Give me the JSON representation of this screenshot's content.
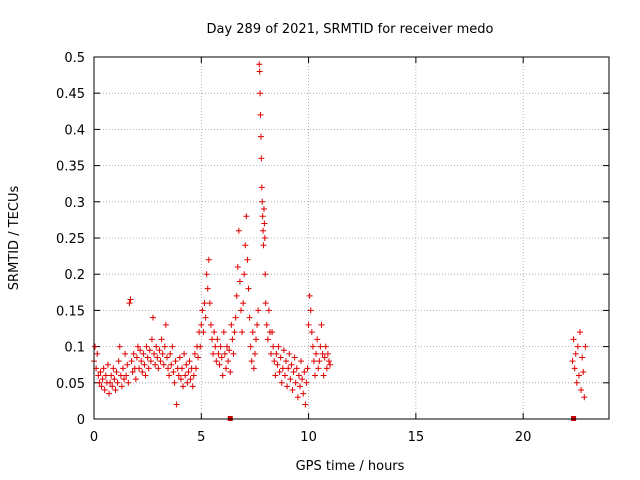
{
  "chart_data": {
    "type": "scatter",
    "title": "Day 289 of 2021, SRMTID for receiver medo",
    "xlabel": "GPS time / hours",
    "ylabel": "SRMTID / TECUs",
    "xlim": [
      0,
      24
    ],
    "ylim": [
      0,
      0.5
    ],
    "grid": true,
    "marker": "plus",
    "x_ticks": [
      0,
      5,
      10,
      15,
      20
    ],
    "x_tick_labels": [
      "0",
      "5",
      "10",
      "15",
      "20"
    ],
    "y_ticks": [
      0,
      0.05,
      0.1,
      0.15,
      0.2,
      0.25,
      0.3,
      0.35,
      0.4,
      0.45,
      0.5
    ],
    "y_tick_labels": [
      "0",
      "0.05",
      "0.1",
      "0.15",
      "0.2",
      "0.25",
      "0.3",
      "0.35",
      "0.4",
      "0.45",
      "0.5"
    ],
    "colors": {
      "series": "#e00000",
      "zero_marker": "#cc0000"
    },
    "series": [
      {
        "name": "SRMTID",
        "points": [
          [
            0.0,
            0.08
          ],
          [
            0.05,
            0.1
          ],
          [
            0.1,
            0.07
          ],
          [
            0.15,
            0.09
          ],
          [
            0.2,
            0.06
          ],
          [
            0.25,
            0.05
          ],
          [
            0.3,
            0.065
          ],
          [
            0.35,
            0.045
          ],
          [
            0.4,
            0.055
          ],
          [
            0.45,
            0.07
          ],
          [
            0.5,
            0.04
          ],
          [
            0.55,
            0.06
          ],
          [
            0.6,
            0.05
          ],
          [
            0.65,
            0.075
          ],
          [
            0.7,
            0.035
          ],
          [
            0.75,
            0.05
          ],
          [
            0.8,
            0.06
          ],
          [
            0.85,
            0.045
          ],
          [
            0.9,
            0.07
          ],
          [
            0.95,
            0.055
          ],
          [
            1.0,
            0.04
          ],
          [
            1.05,
            0.065
          ],
          [
            1.1,
            0.05
          ],
          [
            1.15,
            0.08
          ],
          [
            1.2,
            0.1
          ],
          [
            1.25,
            0.06
          ],
          [
            1.3,
            0.045
          ],
          [
            1.35,
            0.07
          ],
          [
            1.4,
            0.055
          ],
          [
            1.45,
            0.09
          ],
          [
            1.5,
            0.06
          ],
          [
            1.55,
            0.075
          ],
          [
            1.6,
            0.05
          ],
          [
            1.65,
            0.16
          ],
          [
            1.7,
            0.165
          ],
          [
            1.75,
            0.08
          ],
          [
            1.8,
            0.065
          ],
          [
            1.85,
            0.09
          ],
          [
            1.9,
            0.07
          ],
          [
            1.95,
            0.055
          ],
          [
            2.0,
            0.085
          ],
          [
            2.05,
            0.1
          ],
          [
            2.1,
            0.07
          ],
          [
            2.15,
            0.095
          ],
          [
            2.2,
            0.08
          ],
          [
            2.25,
            0.065
          ],
          [
            2.3,
            0.09
          ],
          [
            2.35,
            0.075
          ],
          [
            2.4,
            0.06
          ],
          [
            2.45,
            0.1
          ],
          [
            2.5,
            0.085
          ],
          [
            2.55,
            0.07
          ],
          [
            2.6,
            0.095
          ],
          [
            2.65,
            0.08
          ],
          [
            2.7,
            0.11
          ],
          [
            2.75,
            0.14
          ],
          [
            2.8,
            0.09
          ],
          [
            2.85,
            0.075
          ],
          [
            2.9,
            0.1
          ],
          [
            2.95,
            0.085
          ],
          [
            3.0,
            0.07
          ],
          [
            3.05,
            0.095
          ],
          [
            3.1,
            0.08
          ],
          [
            3.15,
            0.11
          ],
          [
            3.2,
            0.09
          ],
          [
            3.25,
            0.075
          ],
          [
            3.3,
            0.1
          ],
          [
            3.35,
            0.13
          ],
          [
            3.4,
            0.085
          ],
          [
            3.45,
            0.07
          ],
          [
            3.5,
            0.06
          ],
          [
            3.55,
            0.09
          ],
          [
            3.6,
            0.075
          ],
          [
            3.65,
            0.1
          ],
          [
            3.7,
            0.065
          ],
          [
            3.75,
            0.05
          ],
          [
            3.8,
            0.08
          ],
          [
            3.85,
            0.02
          ],
          [
            3.9,
            0.07
          ],
          [
            3.95,
            0.06
          ],
          [
            4.0,
            0.085
          ],
          [
            4.05,
            0.055
          ],
          [
            4.1,
            0.07
          ],
          [
            4.15,
            0.045
          ],
          [
            4.2,
            0.09
          ],
          [
            4.25,
            0.06
          ],
          [
            4.3,
            0.075
          ],
          [
            4.35,
            0.05
          ],
          [
            4.4,
            0.065
          ],
          [
            4.45,
            0.08
          ],
          [
            4.5,
            0.055
          ],
          [
            4.55,
            0.07
          ],
          [
            4.6,
            0.045
          ],
          [
            4.65,
            0.06
          ],
          [
            4.7,
            0.09
          ],
          [
            4.75,
            0.07
          ],
          [
            4.8,
            0.1
          ],
          [
            4.85,
            0.085
          ],
          [
            4.9,
            0.12
          ],
          [
            4.95,
            0.1
          ],
          [
            5.0,
            0.13
          ],
          [
            5.05,
            0.15
          ],
          [
            5.1,
            0.12
          ],
          [
            5.15,
            0.16
          ],
          [
            5.2,
            0.14
          ],
          [
            5.25,
            0.2
          ],
          [
            5.3,
            0.18
          ],
          [
            5.35,
            0.22
          ],
          [
            5.4,
            0.16
          ],
          [
            5.45,
            0.13
          ],
          [
            5.5,
            0.11
          ],
          [
            5.55,
            0.09
          ],
          [
            5.6,
            0.12
          ],
          [
            5.65,
            0.1
          ],
          [
            5.7,
            0.08
          ],
          [
            5.75,
            0.11
          ],
          [
            5.8,
            0.09
          ],
          [
            5.85,
            0.075
          ],
          [
            5.9,
            0.1
          ],
          [
            5.95,
            0.085
          ],
          [
            6.0,
            0.06
          ],
          [
            6.05,
            0.12
          ],
          [
            6.1,
            0.09
          ],
          [
            6.15,
            0.07
          ],
          [
            6.2,
            0.1
          ],
          [
            6.25,
            0.08
          ],
          [
            6.3,
            0.095
          ],
          [
            6.35,
            0.065
          ],
          [
            6.4,
            0.13
          ],
          [
            6.45,
            0.11
          ],
          [
            6.5,
            0.09
          ],
          [
            6.55,
            0.12
          ],
          [
            6.6,
            0.14
          ],
          [
            6.65,
            0.17
          ],
          [
            6.7,
            0.21
          ],
          [
            6.75,
            0.26
          ],
          [
            6.8,
            0.19
          ],
          [
            6.85,
            0.15
          ],
          [
            6.9,
            0.12
          ],
          [
            6.95,
            0.16
          ],
          [
            7.0,
            0.2
          ],
          [
            7.05,
            0.24
          ],
          [
            7.1,
            0.28
          ],
          [
            7.15,
            0.22
          ],
          [
            7.2,
            0.18
          ],
          [
            7.25,
            0.14
          ],
          [
            7.3,
            0.1
          ],
          [
            7.35,
            0.08
          ],
          [
            7.4,
            0.12
          ],
          [
            7.45,
            0.07
          ],
          [
            7.5,
            0.09
          ],
          [
            7.55,
            0.11
          ],
          [
            7.6,
            0.13
          ],
          [
            7.65,
            0.15
          ],
          [
            7.7,
            0.49
          ],
          [
            7.72,
            0.48
          ],
          [
            7.74,
            0.45
          ],
          [
            7.76,
            0.42
          ],
          [
            7.78,
            0.39
          ],
          [
            7.8,
            0.36
          ],
          [
            7.82,
            0.32
          ],
          [
            7.84,
            0.3
          ],
          [
            7.86,
            0.28
          ],
          [
            7.88,
            0.26
          ],
          [
            7.9,
            0.24
          ],
          [
            7.92,
            0.29
          ],
          [
            7.94,
            0.27
          ],
          [
            7.96,
            0.25
          ],
          [
            7.98,
            0.2
          ],
          [
            8.0,
            0.16
          ],
          [
            8.05,
            0.13
          ],
          [
            8.1,
            0.11
          ],
          [
            8.15,
            0.15
          ],
          [
            8.2,
            0.12
          ],
          [
            8.25,
            0.09
          ],
          [
            8.3,
            0.12
          ],
          [
            8.35,
            0.1
          ],
          [
            8.4,
            0.08
          ],
          [
            8.45,
            0.06
          ],
          [
            8.5,
            0.09
          ],
          [
            8.55,
            0.075
          ],
          [
            8.6,
            0.1
          ],
          [
            8.65,
            0.065
          ],
          [
            8.7,
            0.085
          ],
          [
            8.75,
            0.05
          ],
          [
            8.8,
            0.07
          ],
          [
            8.85,
            0.095
          ],
          [
            8.9,
            0.06
          ],
          [
            8.95,
            0.08
          ],
          [
            9.0,
            0.045
          ],
          [
            9.05,
            0.07
          ],
          [
            9.1,
            0.09
          ],
          [
            9.15,
            0.055
          ],
          [
            9.2,
            0.075
          ],
          [
            9.25,
            0.04
          ],
          [
            9.3,
            0.065
          ],
          [
            9.35,
            0.085
          ],
          [
            9.4,
            0.05
          ],
          [
            9.45,
            0.07
          ],
          [
            9.5,
            0.03
          ],
          [
            9.55,
            0.06
          ],
          [
            9.6,
            0.045
          ],
          [
            9.65,
            0.08
          ],
          [
            9.7,
            0.055
          ],
          [
            9.75,
            0.035
          ],
          [
            9.8,
            0.065
          ],
          [
            9.85,
            0.02
          ],
          [
            9.9,
            0.05
          ],
          [
            9.95,
            0.07
          ],
          [
            10.0,
            0.13
          ],
          [
            10.05,
            0.17
          ],
          [
            10.1,
            0.15
          ],
          [
            10.15,
            0.12
          ],
          [
            10.2,
            0.1
          ],
          [
            10.25,
            0.08
          ],
          [
            10.3,
            0.06
          ],
          [
            10.35,
            0.09
          ],
          [
            10.4,
            0.11
          ],
          [
            10.45,
            0.07
          ],
          [
            10.5,
            0.08
          ],
          [
            10.55,
            0.1
          ],
          [
            10.6,
            0.13
          ],
          [
            10.65,
            0.09
          ],
          [
            10.7,
            0.06
          ],
          [
            10.75,
            0.085
          ],
          [
            10.8,
            0.1
          ],
          [
            10.85,
            0.07
          ],
          [
            10.9,
            0.09
          ],
          [
            10.95,
            0.08
          ],
          [
            11.0,
            0.075
          ],
          [
            22.3,
            0.08
          ],
          [
            22.35,
            0.11
          ],
          [
            22.4,
            0.07
          ],
          [
            22.45,
            0.09
          ],
          [
            22.5,
            0.05
          ],
          [
            22.55,
            0.1
          ],
          [
            22.6,
            0.06
          ],
          [
            22.65,
            0.12
          ],
          [
            22.7,
            0.04
          ],
          [
            22.75,
            0.085
          ],
          [
            22.8,
            0.065
          ],
          [
            22.85,
            0.03
          ],
          [
            22.9,
            0.1
          ]
        ]
      }
    ],
    "zero_markers": [
      [
        6.35,
        0
      ],
      [
        22.35,
        0
      ]
    ]
  }
}
